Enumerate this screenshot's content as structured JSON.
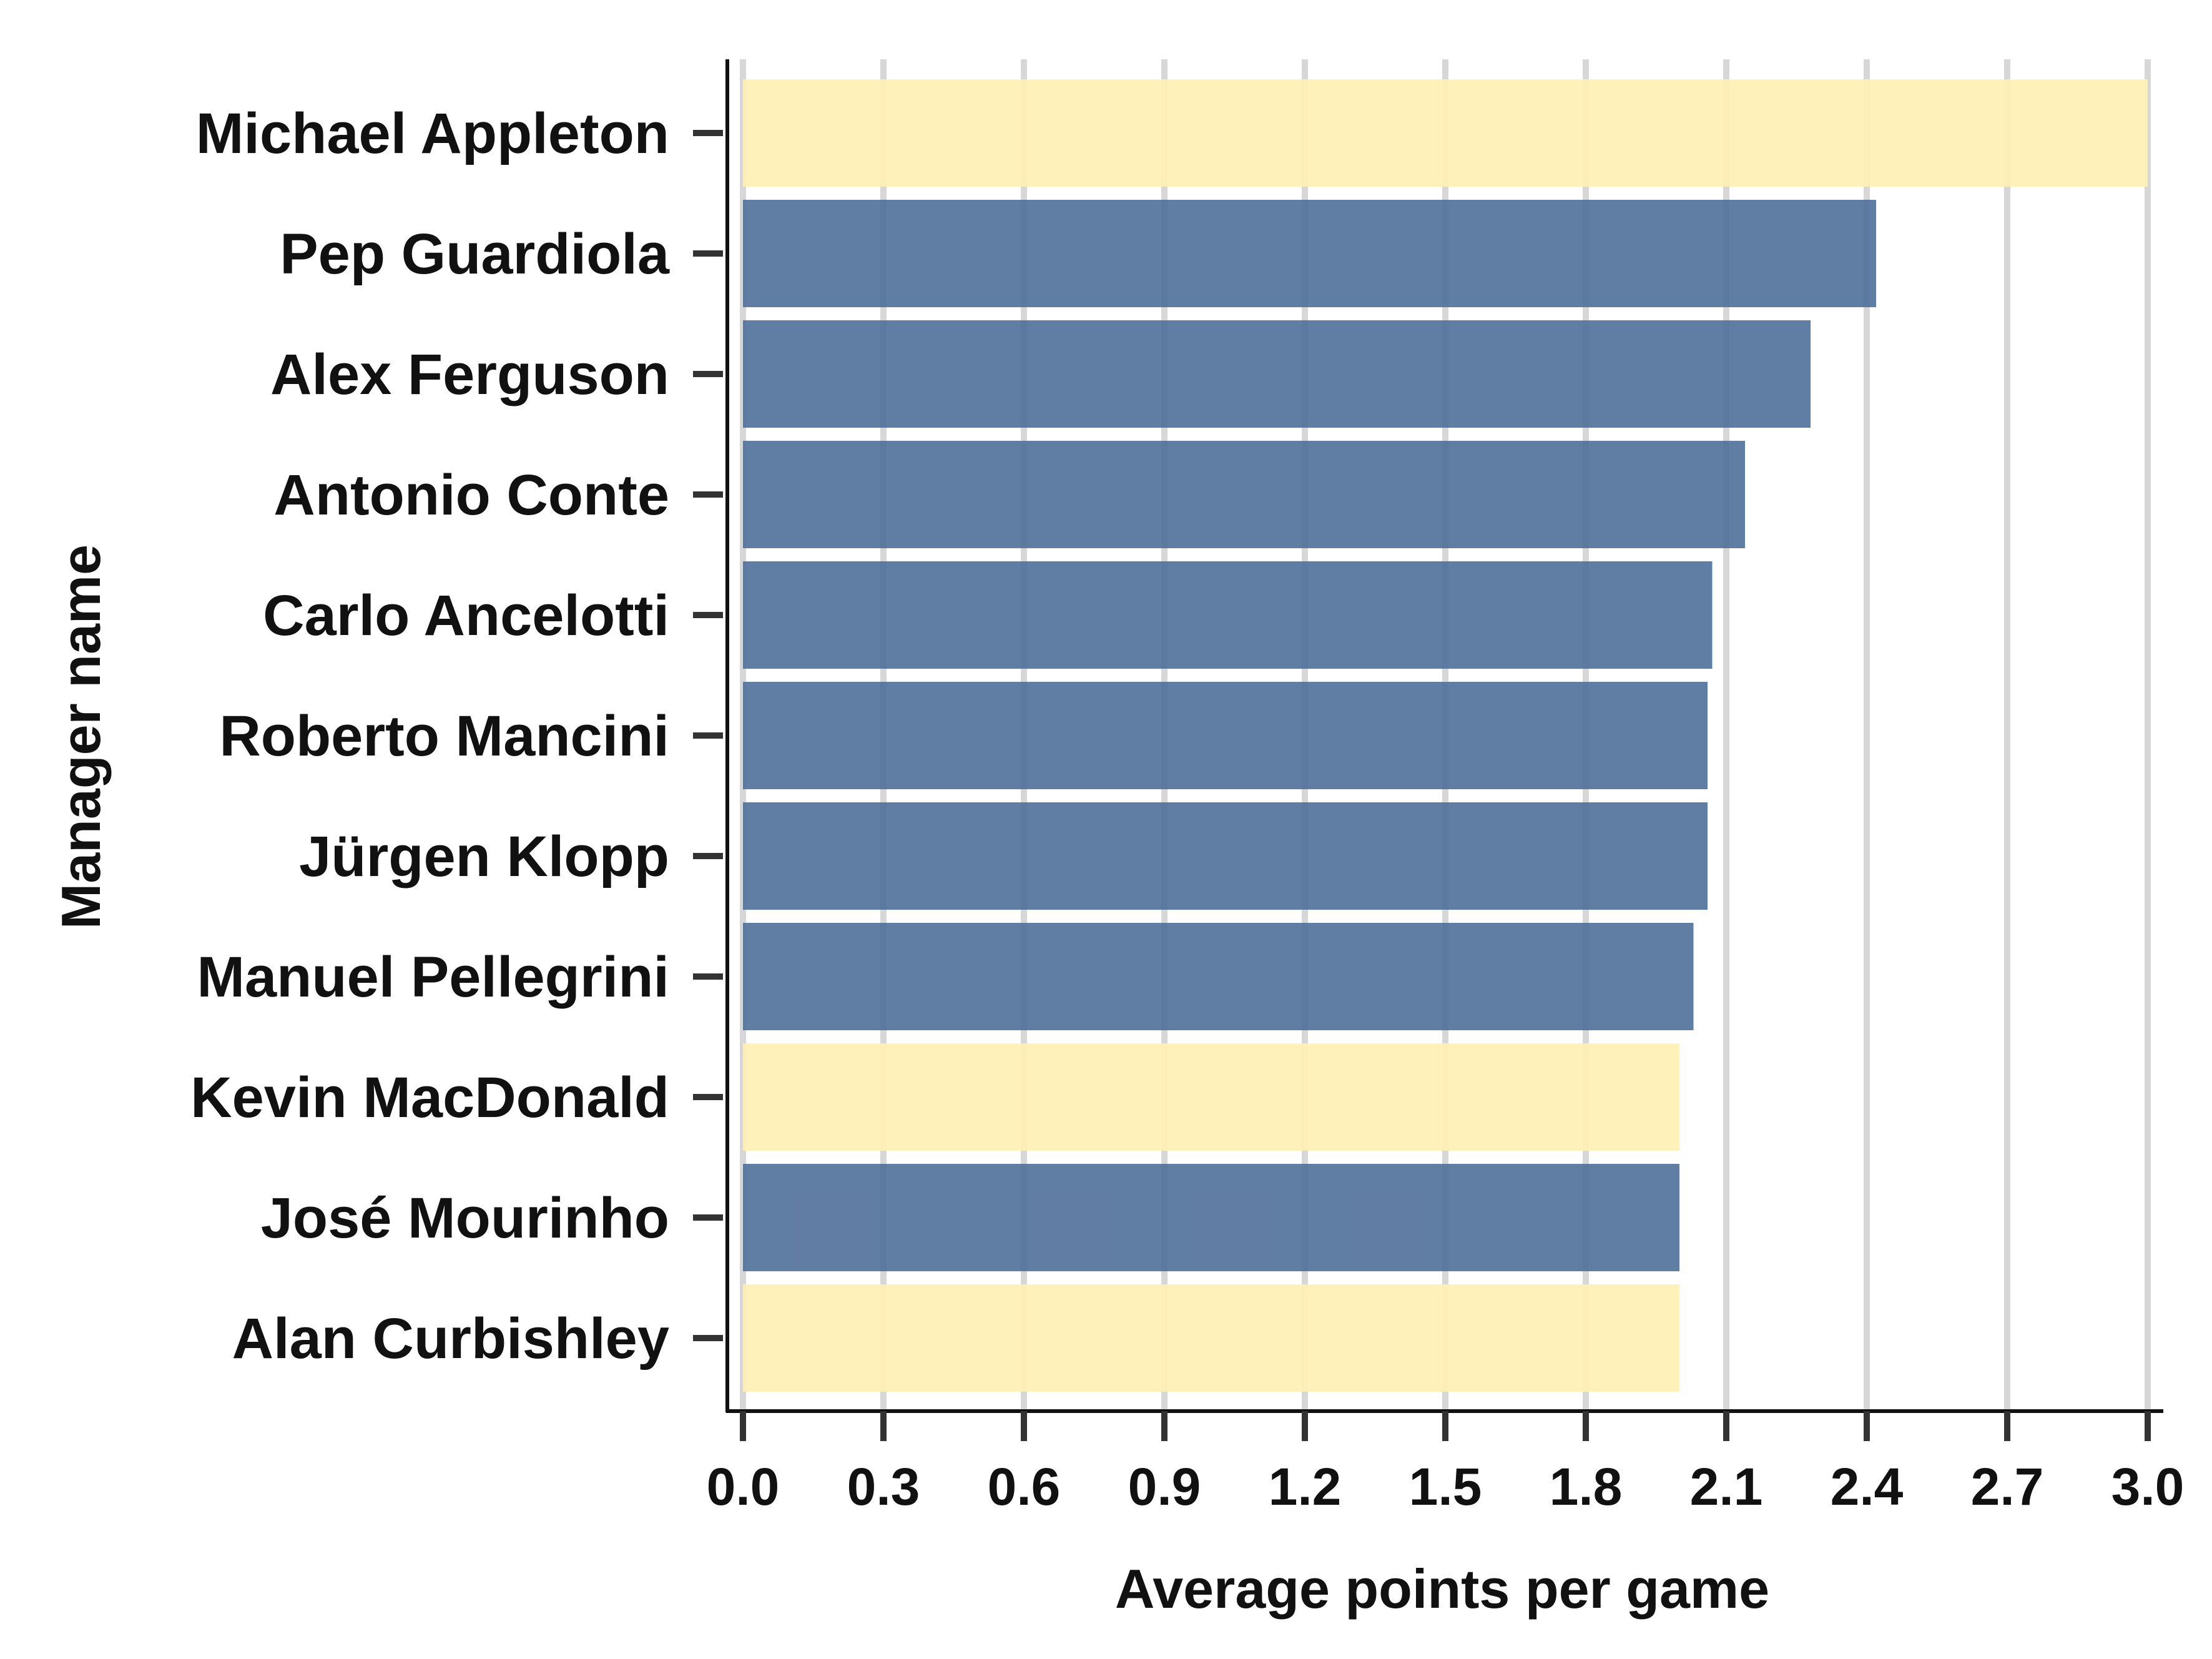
{
  "chart_data": {
    "type": "bar",
    "orientation": "horizontal",
    "title": "",
    "xlabel": "Average points per game",
    "ylabel": "Manager name",
    "xlim": [
      0,
      3.0
    ],
    "x_ticks": [
      "0.0",
      "0.3",
      "0.6",
      "0.9",
      "1.2",
      "1.5",
      "1.8",
      "2.1",
      "2.4",
      "2.7",
      "3.0"
    ],
    "grid": "vertical",
    "categories": [
      "Michael Appleton",
      "Pep Guardiola",
      "Alex Ferguson",
      "Antonio Conte",
      "Carlo Ancelotti",
      "Roberto Mancini",
      "Jürgen Klopp",
      "Manuel Pellegrini",
      "Kevin MacDonald",
      "José Mourinho",
      "Alan Curbishley"
    ],
    "values": [
      3.0,
      2.42,
      2.28,
      2.14,
      2.07,
      2.06,
      2.06,
      2.03,
      2.0,
      2.0,
      2.0
    ],
    "highlight": [
      true,
      false,
      false,
      false,
      false,
      false,
      false,
      false,
      true,
      false,
      true
    ],
    "colors": {
      "default": "#4f6f99",
      "highlight": "#fff0b3",
      "grid": "#d7d7d7",
      "axis": "#111111"
    }
  }
}
